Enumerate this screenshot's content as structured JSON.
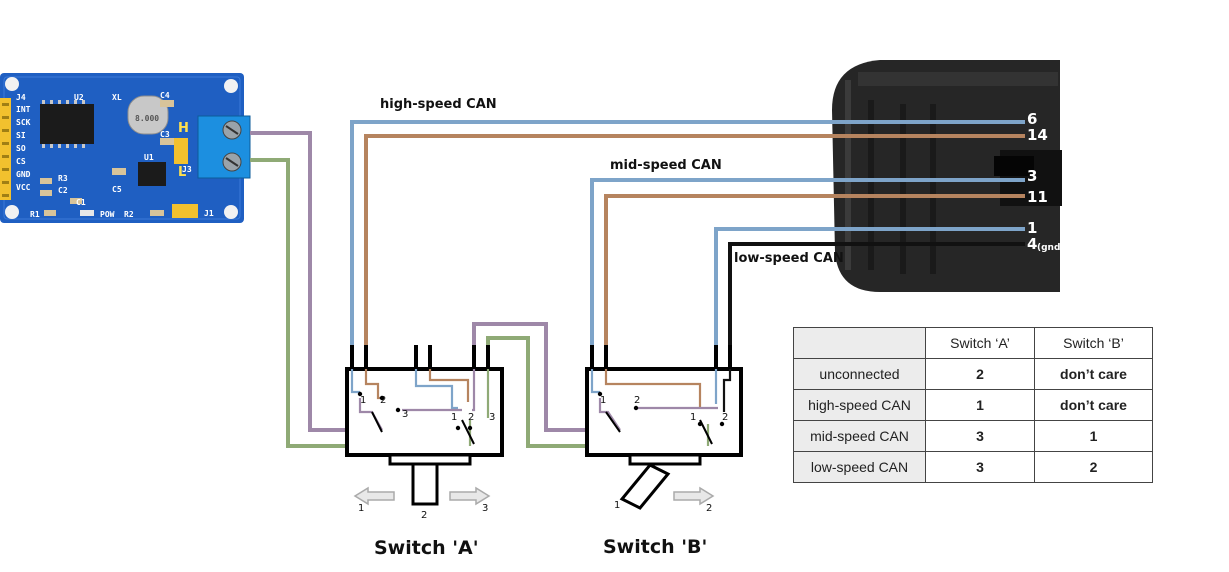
{
  "wire_labels": {
    "high": "high-speed CAN",
    "mid": "mid-speed CAN",
    "low": "low-speed CAN"
  },
  "obd_pins": [
    {
      "num": "6",
      "sub": ""
    },
    {
      "num": "14",
      "sub": ""
    },
    {
      "num": "3",
      "sub": ""
    },
    {
      "num": "11",
      "sub": ""
    },
    {
      "num": "1",
      "sub": ""
    },
    {
      "num": "4",
      "sub": "(gnd)"
    }
  ],
  "pcb": {
    "header_labels": [
      "J4",
      "INT",
      "SCK",
      "SI",
      "SO",
      "CS",
      "GND",
      "VCC"
    ],
    "parts": [
      "U2",
      "XL",
      "C4",
      "C3",
      "J3",
      "U1",
      "C5",
      "R3",
      "C2",
      "C1",
      "R1",
      "POW",
      "R2",
      "J1"
    ],
    "crystal_text": "8.000",
    "terminal_marks": [
      "H",
      "L"
    ]
  },
  "switch_a": {
    "title": "Switch 'A'",
    "terminals": [
      "1",
      "2",
      "3",
      "1",
      "2",
      "3"
    ],
    "positions": [
      "1",
      "2",
      "3"
    ]
  },
  "switch_b": {
    "title": "Switch 'B'",
    "terminals": [
      "1",
      "2",
      "1",
      "2"
    ],
    "positions": [
      "1",
      "2"
    ]
  },
  "table": {
    "headers": [
      "",
      "Switch ‘A’",
      "Switch ‘B’"
    ],
    "rows": [
      {
        "mode": "unconnected",
        "a": "2",
        "b": "don’t care"
      },
      {
        "mode": "high-speed CAN",
        "a": "1",
        "b": "don’t care"
      },
      {
        "mode": "mid-speed CAN",
        "a": "3",
        "b": "1"
      },
      {
        "mode": "low-speed CAN",
        "a": "3",
        "b": "2"
      }
    ]
  },
  "colors": {
    "blue_wire": "#7ea4c9",
    "brown_wire": "#b6845f",
    "purple_wire": "#9e88a8",
    "green_wire": "#8faa76",
    "black_wire": "#111111",
    "pcb_blue": "#1f5fc2",
    "terminal_block": "#1c8fe0",
    "connector_body": "#262626"
  }
}
